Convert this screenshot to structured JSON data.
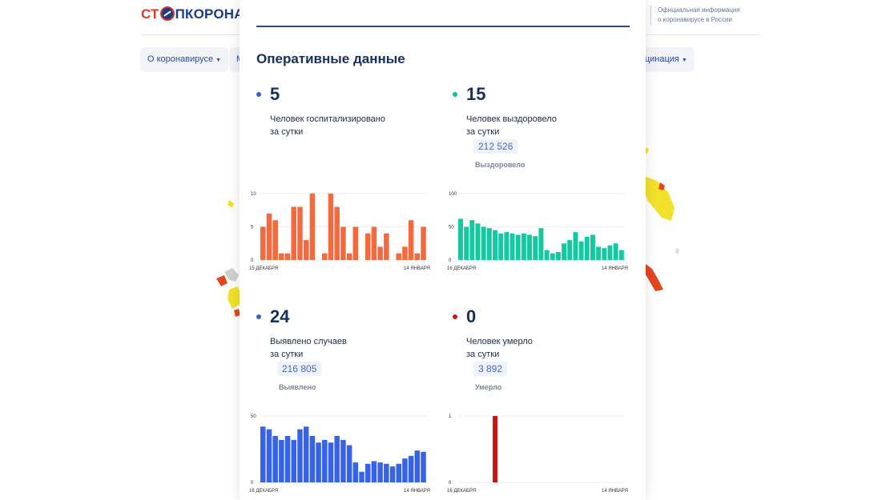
{
  "header": {
    "logo_left": "СТ",
    "logo_right": "ПКОРОНАВИ",
    "official_line1": "Официальная информация",
    "official_line2": "о коронавирусе в России"
  },
  "nav": {
    "item1_label": "О коронавирусе",
    "item2_label": "М",
    "item3_label": "кцинация"
  },
  "modal": {
    "title": "Оперативные данные",
    "blocks": [
      {
        "value": "5",
        "desc_line1": "Человек госпитализировано",
        "desc_line2": "за сутки",
        "total": "",
        "total_label": "",
        "color": "#3a5bd6"
      },
      {
        "value": "15",
        "desc_line1": "Человек выздоровело",
        "desc_line2": "за сутки",
        "total": "212 526",
        "total_label": "Выздоровело",
        "color": "#14c09a"
      },
      {
        "value": "24",
        "desc_line1": "Выявлено случаев",
        "desc_line2": "за сутки",
        "total": "216 805",
        "total_label": "Выявлено",
        "color": "#3a5bd6"
      },
      {
        "value": "0",
        "desc_line1": "Человек умерло",
        "desc_line2": "за сутки",
        "total": "3 892",
        "total_label": "Умерло",
        "color": "#c41818"
      }
    ]
  },
  "chart_data": [
    {
      "type": "bar",
      "color": "#f26a3d",
      "ylim": [
        0,
        10
      ],
      "yticks": [
        "0",
        "5",
        "10"
      ],
      "x_start": "15 ДЕКАБРЯ",
      "x_end": "14 ЯНВАРЯ",
      "values": [
        5,
        7,
        6,
        1,
        1,
        8,
        8,
        3,
        10,
        0,
        1,
        10,
        8,
        5,
        1,
        5,
        0,
        4,
        5,
        2,
        4,
        0,
        1,
        2,
        6,
        1,
        5
      ]
    },
    {
      "type": "bar",
      "color": "#14c9a2",
      "ylim": [
        0,
        100
      ],
      "yticks": [
        "0",
        "50",
        "100"
      ],
      "x_start": "16 ДЕКАБРЯ",
      "x_end": "14 ЯНВАРЯ",
      "values": [
        62,
        50,
        60,
        55,
        50,
        48,
        45,
        40,
        42,
        40,
        38,
        40,
        38,
        36,
        48,
        15,
        10,
        12,
        25,
        30,
        42,
        28,
        35,
        38,
        20,
        18,
        22,
        25,
        15
      ]
    },
    {
      "type": "bar",
      "color": "#3663e8",
      "ylim": [
        0,
        50
      ],
      "yticks": [
        "0",
        "50"
      ],
      "x_start": "16 ДЕКАБРЯ",
      "x_end": "14 ЯНВАРЯ",
      "values": [
        42,
        40,
        35,
        32,
        35,
        32,
        40,
        42,
        35,
        30,
        32,
        30,
        35,
        32,
        28,
        15,
        8,
        14,
        16,
        15,
        14,
        12,
        14,
        18,
        20,
        24,
        23
      ]
    },
    {
      "type": "bar",
      "color": "#c41818",
      "ylim": [
        0,
        1
      ],
      "yticks": [
        "0",
        "1"
      ],
      "x_start": "16 ДЕКАБРЯ",
      "x_end": "14 ЯНВАРЯ",
      "values": [
        0,
        0,
        0,
        0,
        0,
        0,
        1,
        0,
        0,
        0,
        0,
        0,
        0,
        0,
        0,
        0,
        0,
        0,
        0,
        0,
        0,
        0,
        0,
        0,
        0,
        0,
        0,
        0,
        0
      ]
    }
  ]
}
